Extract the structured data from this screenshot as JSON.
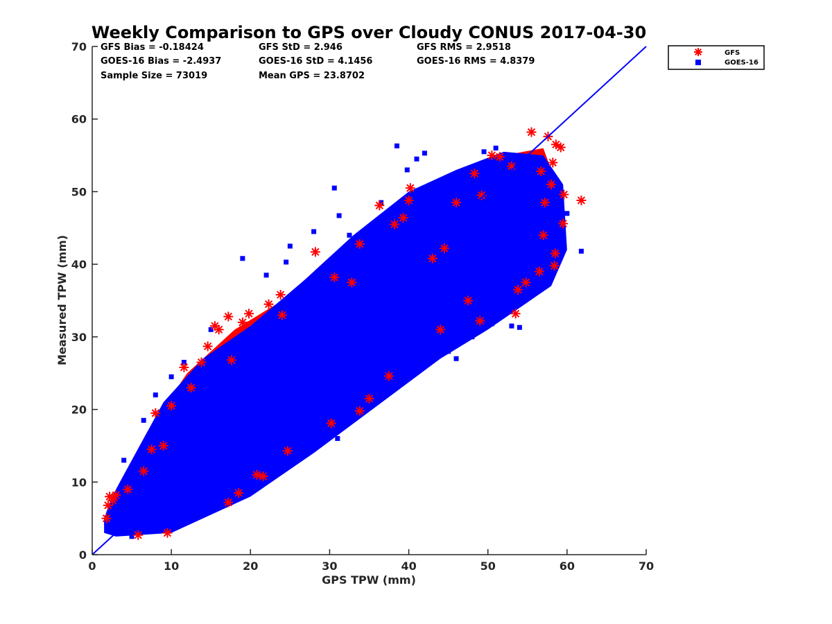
{
  "chart_data": {
    "type": "scatter",
    "title": "Weekly Comparison to GPS over Cloudy CONUS 2017-04-30",
    "xlabel": "GPS TPW (mm)",
    "ylabel": "Measured TPW (mm)",
    "xlim": [
      0,
      70
    ],
    "ylim": [
      0,
      70
    ],
    "xticks": [
      "0",
      "10",
      "20",
      "30",
      "40",
      "50",
      "60",
      "70"
    ],
    "yticks": [
      "0",
      "10",
      "20",
      "30",
      "40",
      "50",
      "60",
      "70"
    ],
    "grid": false,
    "legend_position": "outside-top-right",
    "stats": [
      [
        "GFS Bias = -0.18424",
        "GFS StD = 2.946",
        "GFS RMS = 2.9518"
      ],
      [
        "GOES-16 Bias = -2.4937",
        "GOES-16 StD = 4.1456",
        "GOES-16 RMS = 4.8379"
      ],
      [
        "Sample Size = 73019",
        "Mean GPS = 23.8702",
        ""
      ]
    ],
    "reference_line": {
      "x": [
        0,
        70
      ],
      "y": [
        0,
        70
      ],
      "color": "#0000ff"
    },
    "series": [
      {
        "name": "GFS",
        "marker": "asterisk",
        "color": "#ff0000",
        "points": [
          [
            1.8,
            5.0
          ],
          [
            2.2,
            8.0
          ],
          [
            2.6,
            7.5
          ],
          [
            3.0,
            8.2
          ],
          [
            2.0,
            6.8
          ],
          [
            5.8,
            2.7
          ],
          [
            9.5,
            3.0
          ],
          [
            11.6,
            25.8
          ],
          [
            13.8,
            26.5
          ],
          [
            14.6,
            28.7
          ],
          [
            15.5,
            31.5
          ],
          [
            16.0,
            31.0
          ],
          [
            17.2,
            32.8
          ],
          [
            17.6,
            26.8
          ],
          [
            19.0,
            32.0
          ],
          [
            19.8,
            33.2
          ],
          [
            22.3,
            34.5
          ],
          [
            23.8,
            35.8
          ],
          [
            24.0,
            33.0
          ],
          [
            28.2,
            41.7
          ],
          [
            30.6,
            38.2
          ],
          [
            32.8,
            37.5
          ],
          [
            33.8,
            42.8
          ],
          [
            36.3,
            48.1
          ],
          [
            38.2,
            45.5
          ],
          [
            39.3,
            46.4
          ],
          [
            40.0,
            48.8
          ],
          [
            40.2,
            50.5
          ],
          [
            17.2,
            7.2
          ],
          [
            18.5,
            8.5
          ],
          [
            20.8,
            11.0
          ],
          [
            21.6,
            10.8
          ],
          [
            24.7,
            14.3
          ],
          [
            30.2,
            18.1
          ],
          [
            33.8,
            19.8
          ],
          [
            35.0,
            21.5
          ],
          [
            37.5,
            24.6
          ],
          [
            43.0,
            40.8
          ],
          [
            44.5,
            42.2
          ],
          [
            46.0,
            48.5
          ],
          [
            48.3,
            52.5
          ],
          [
            49.2,
            49.5
          ],
          [
            50.5,
            55.0
          ],
          [
            51.5,
            54.8
          ],
          [
            53.0,
            53.5
          ],
          [
            53.5,
            33.2
          ],
          [
            55.5,
            58.2
          ],
          [
            56.7,
            52.8
          ],
          [
            57.2,
            48.5
          ],
          [
            57.6,
            57.6
          ],
          [
            58.2,
            54.0
          ],
          [
            58.6,
            56.5
          ],
          [
            59.2,
            56.1
          ],
          [
            59.6,
            49.6
          ],
          [
            59.5,
            45.6
          ],
          [
            58.5,
            41.5
          ],
          [
            58.4,
            39.8
          ],
          [
            56.5,
            39.0
          ],
          [
            58.0,
            51.0
          ],
          [
            61.8,
            48.8
          ],
          [
            57.0,
            44.0
          ],
          [
            54.8,
            37.5
          ],
          [
            53.8,
            36.5
          ],
          [
            47.5,
            35.0
          ],
          [
            49.0,
            32.2
          ],
          [
            44.0,
            31.0
          ],
          [
            8.0,
            19.5
          ],
          [
            9.0,
            15.0
          ],
          [
            10.0,
            20.5
          ],
          [
            12.5,
            23.0
          ],
          [
            7.5,
            14.5
          ],
          [
            6.5,
            11.5
          ],
          [
            4.5,
            9.0
          ]
        ]
      },
      {
        "name": "GOES-16",
        "marker": "square",
        "color": "#0000ff",
        "points": [
          [
            38.5,
            56.3
          ],
          [
            41.0,
            54.5
          ],
          [
            42.0,
            55.3
          ],
          [
            39.8,
            53.0
          ],
          [
            30.6,
            50.5
          ],
          [
            36.5,
            48.5
          ],
          [
            31.2,
            46.7
          ],
          [
            32.5,
            44.0
          ],
          [
            28.0,
            44.5
          ],
          [
            25.0,
            42.5
          ],
          [
            19.0,
            40.8
          ],
          [
            24.5,
            40.3
          ],
          [
            22.0,
            38.5
          ],
          [
            11.6,
            26.5
          ],
          [
            10.0,
            24.5
          ],
          [
            8.0,
            22.0
          ],
          [
            6.5,
            18.5
          ],
          [
            4.0,
            13.0
          ],
          [
            31.0,
            16.0
          ],
          [
            35.5,
            22.0
          ],
          [
            34.0,
            24.0
          ],
          [
            38.0,
            26.0
          ],
          [
            43.5,
            27.5
          ],
          [
            45.0,
            28.0
          ],
          [
            48.0,
            30.0
          ],
          [
            50.5,
            31.8
          ],
          [
            53.0,
            31.5
          ],
          [
            54.0,
            31.3
          ],
          [
            56.0,
            42.0
          ],
          [
            61.8,
            41.8
          ],
          [
            59.0,
            44.0
          ],
          [
            57.0,
            45.5
          ],
          [
            55.0,
            53.0
          ],
          [
            49.5,
            55.5
          ],
          [
            51.0,
            56.0
          ],
          [
            53.5,
            54.5
          ],
          [
            60.0,
            47.0
          ],
          [
            57.5,
            46.5
          ],
          [
            55.5,
            38.0
          ],
          [
            54.5,
            36.5
          ],
          [
            52.0,
            37.0
          ],
          [
            47.0,
            36.5
          ],
          [
            46.0,
            27.0
          ],
          [
            42.0,
            26.5
          ],
          [
            40.0,
            25.0
          ],
          [
            36.0,
            24.0
          ],
          [
            27.0,
            16.0
          ],
          [
            24.5,
            14.0
          ],
          [
            22.0,
            12.0
          ],
          [
            19.0,
            10.0
          ],
          [
            17.0,
            8.0
          ],
          [
            14.0,
            6.0
          ],
          [
            12.0,
            5.0
          ],
          [
            9.0,
            3.5
          ],
          [
            5.0,
            2.5
          ],
          [
            3.0,
            3.0
          ],
          [
            2.5,
            4.0
          ],
          [
            4.0,
            6.0
          ],
          [
            6.0,
            9.0
          ],
          [
            15.0,
            31.0
          ],
          [
            13.5,
            24.5
          ],
          [
            20.0,
            30.0
          ],
          [
            27.5,
            35.0
          ],
          [
            33.0,
            38.0
          ],
          [
            40.0,
            45.0
          ],
          [
            45.0,
            50.0
          ],
          [
            50.0,
            52.0
          ]
        ]
      }
    ]
  }
}
